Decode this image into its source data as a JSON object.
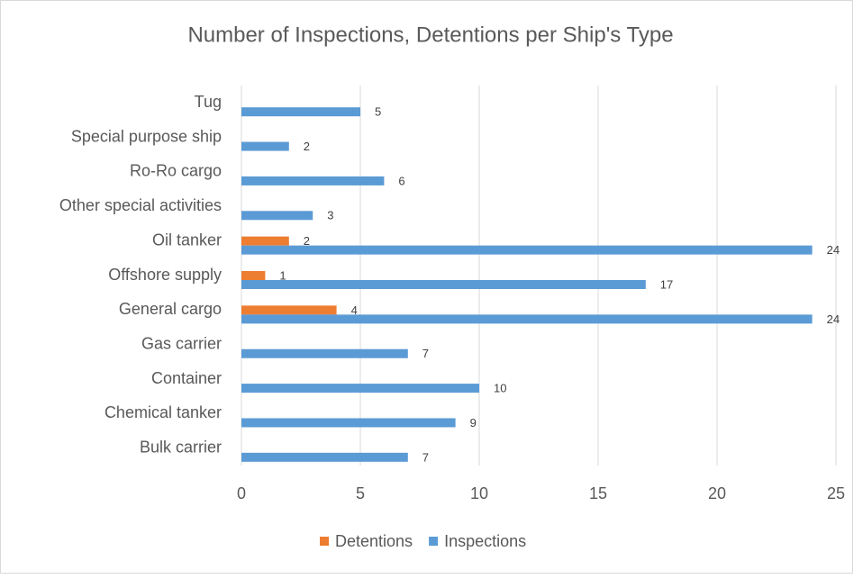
{
  "chart_data": {
    "type": "bar",
    "orientation": "horizontal",
    "title": "Number of Inspections, Detentions per Ship's Type",
    "categories": [
      "Bulk carrier",
      "Chemical tanker",
      "Container",
      "Gas carrier",
      "General cargo",
      "Offshore supply",
      "Oil tanker",
      "Other special activities",
      "Ro-Ro cargo",
      "Special purpose ship",
      "Tug"
    ],
    "series": [
      {
        "name": "Detentions",
        "color": "#ed7d31",
        "values": [
          null,
          null,
          null,
          null,
          4,
          1,
          2,
          null,
          null,
          null,
          null
        ]
      },
      {
        "name": "Inspections",
        "color": "#5b9bd5",
        "values": [
          7,
          9,
          10,
          7,
          24,
          17,
          24,
          3,
          6,
          2,
          5
        ]
      }
    ],
    "xlim": [
      0,
      25
    ],
    "xticks": [
      0,
      5,
      10,
      15,
      20,
      25
    ],
    "grid": true,
    "legend": "bottom"
  }
}
